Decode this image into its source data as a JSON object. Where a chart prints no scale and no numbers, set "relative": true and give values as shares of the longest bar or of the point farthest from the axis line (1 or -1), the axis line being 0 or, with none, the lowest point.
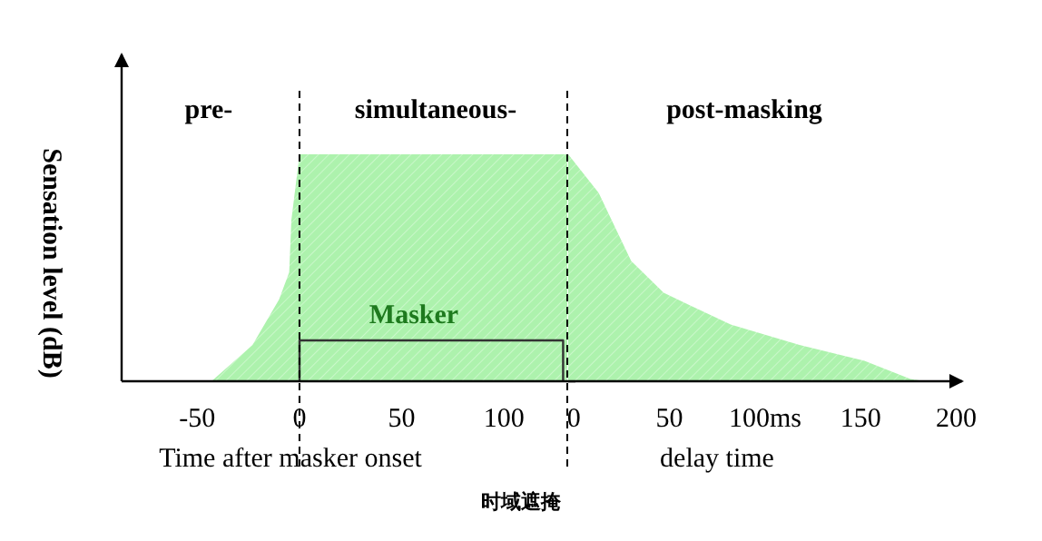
{
  "chart_data": [
    {
      "type": "area",
      "relative": true,
      "xlabel": "Time after masker onset",
      "ylabel": "Sensation level (dB)",
      "xlim": [
        -87,
        135
      ],
      "xticks": [
        -50,
        0,
        50,
        100
      ],
      "series": [
        {
          "color": "#adf2ad",
          "x": [
            -43,
            -23,
            -10,
            -5,
            -4,
            0,
            131
          ],
          "values": [
            0,
            0.16,
            0.36,
            0.48,
            0.71,
            1,
            1
          ]
        },
        {
          "type": "line",
          "color": "#333333",
          "x": [
            0,
            0,
            129,
            129
          ],
          "values": [
            0,
            0.18,
            0.18,
            0
          ]
        }
      ],
      "ref_lines": [
        {
          "axis": "x",
          "value": 0,
          "line_style": "dashed"
        },
        {
          "axis": "x",
          "value": 131,
          "line_style": "dashed"
        }
      ],
      "annotations": [
        "pre-",
        "simultaneous-",
        "Masker",
        "时域遮掩"
      ]
    },
    {
      "type": "area",
      "relative": true,
      "xlabel": "delay time",
      "xlim": [
        -3,
        205
      ],
      "xticks": [
        0,
        50,
        {
          "value": 100,
          "label": "100ms"
        },
        150,
        200
      ],
      "series": [
        {
          "color": "#adf2ad",
          "x": [
            -3,
            13,
            30,
            47,
            82,
            118,
            152,
            176,
            184
          ],
          "values": [
            1,
            0.83,
            0.53,
            0.39,
            0.25,
            0.16,
            0.09,
            0.01,
            0
          ]
        }
      ],
      "annotations": [
        "post-masking"
      ]
    }
  ]
}
